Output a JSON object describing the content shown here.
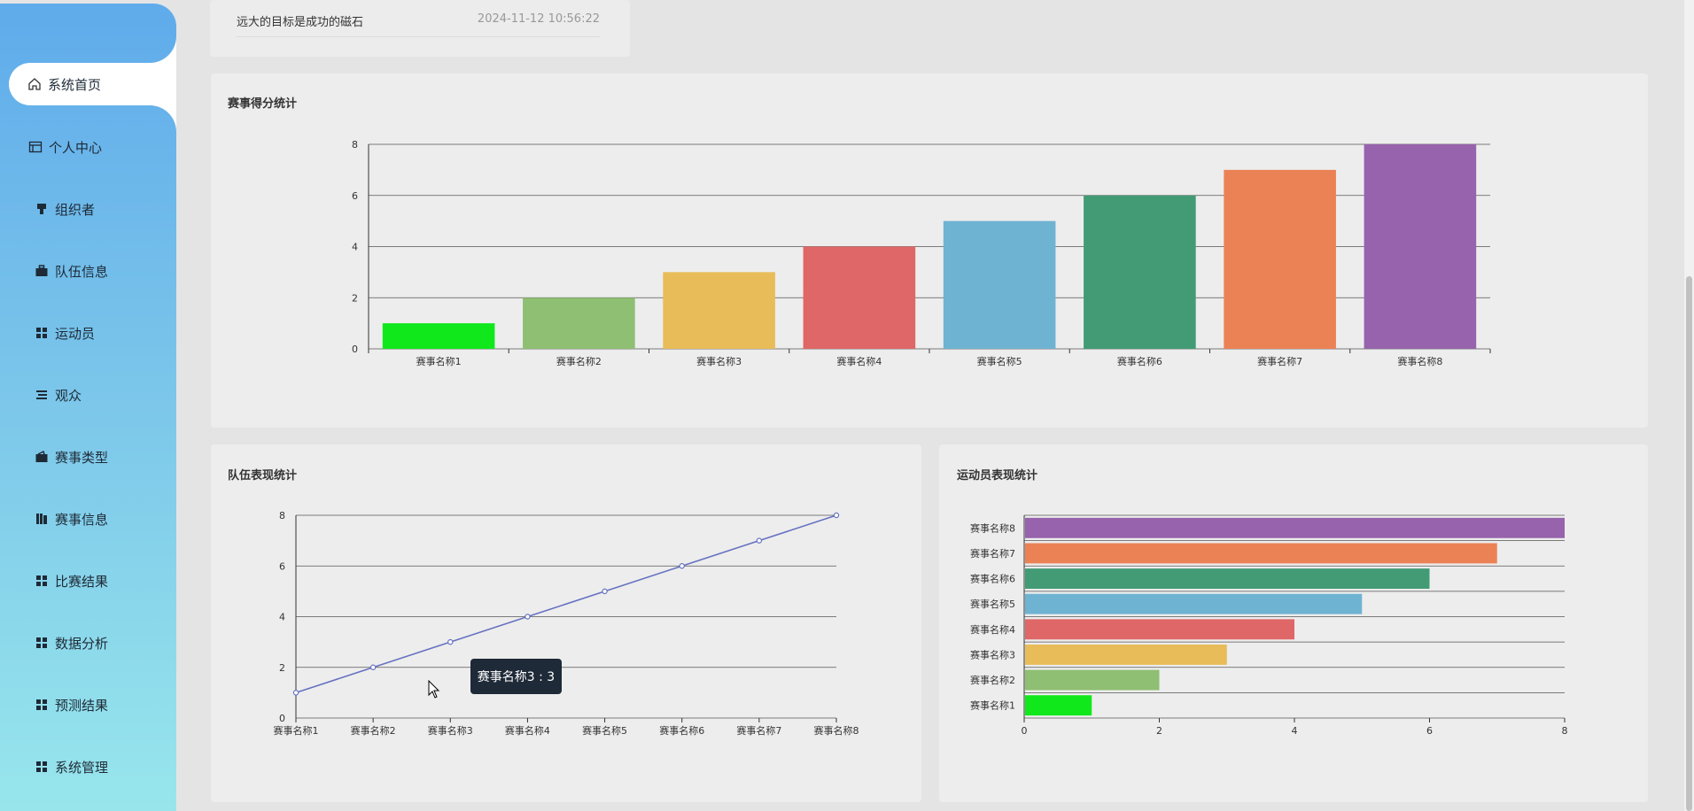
{
  "sidebar": {
    "items": [
      {
        "label": "系统首页",
        "icon": "home-icon",
        "active": true
      },
      {
        "label": "个人中心",
        "icon": "id-card-icon"
      },
      {
        "label": "组织者",
        "icon": "brush-icon"
      },
      {
        "label": "队伍信息",
        "icon": "briefcase-icon"
      },
      {
        "label": "运动员",
        "icon": "grid-icon"
      },
      {
        "label": "观众",
        "icon": "list-icon"
      },
      {
        "label": "赛事类型",
        "icon": "wallet-icon"
      },
      {
        "label": "赛事信息",
        "icon": "book-icon"
      },
      {
        "label": "比赛结果",
        "icon": "grid-icon"
      },
      {
        "label": "数据分析",
        "icon": "grid-icon"
      },
      {
        "label": "预测结果",
        "icon": "grid-icon"
      },
      {
        "label": "系统管理",
        "icon": "grid-icon"
      }
    ]
  },
  "notice": {
    "title": "远大的目标是成功的磁石",
    "time": "2024-11-12 10:56:22"
  },
  "charts": {
    "score_title": "赛事得分统计",
    "team_title": "队伍表现统计",
    "athlete_title": "运动员表现统计"
  },
  "tooltip": {
    "text": "赛事名称3 : 3"
  },
  "colors": [
    "#10e81c",
    "#8fbf72",
    "#e8bc58",
    "#df6767",
    "#6fb3d2",
    "#429b75",
    "#eb8256",
    "#9763ac"
  ],
  "chart_data": [
    {
      "type": "bar",
      "title": "赛事得分统计",
      "categories": [
        "赛事名称1",
        "赛事名称2",
        "赛事名称3",
        "赛事名称4",
        "赛事名称5",
        "赛事名称6",
        "赛事名称7",
        "赛事名称8"
      ],
      "values": [
        1,
        2,
        3,
        4,
        5,
        6,
        7,
        8
      ],
      "ylim": [
        0,
        8
      ],
      "yticks": [
        0,
        2,
        4,
        6,
        8
      ],
      "grid": true
    },
    {
      "type": "line",
      "title": "队伍表现统计",
      "categories": [
        "赛事名称1",
        "赛事名称2",
        "赛事名称3",
        "赛事名称4",
        "赛事名称5",
        "赛事名称6",
        "赛事名称7",
        "赛事名称8"
      ],
      "values": [
        1,
        2,
        3,
        4,
        5,
        6,
        7,
        8
      ],
      "ylim": [
        0,
        8
      ],
      "yticks": [
        0,
        2,
        4,
        6,
        8
      ],
      "grid": true,
      "color": "#6672c1"
    },
    {
      "type": "bar",
      "orientation": "horizontal",
      "title": "运动员表现统计",
      "categories": [
        "赛事名称1",
        "赛事名称2",
        "赛事名称3",
        "赛事名称4",
        "赛事名称5",
        "赛事名称6",
        "赛事名称7",
        "赛事名称8"
      ],
      "values": [
        1,
        2,
        3,
        4,
        5,
        6,
        7,
        8
      ],
      "xlim": [
        0,
        8
      ],
      "xticks": [
        0,
        2,
        4,
        6,
        8
      ],
      "grid": true
    }
  ]
}
